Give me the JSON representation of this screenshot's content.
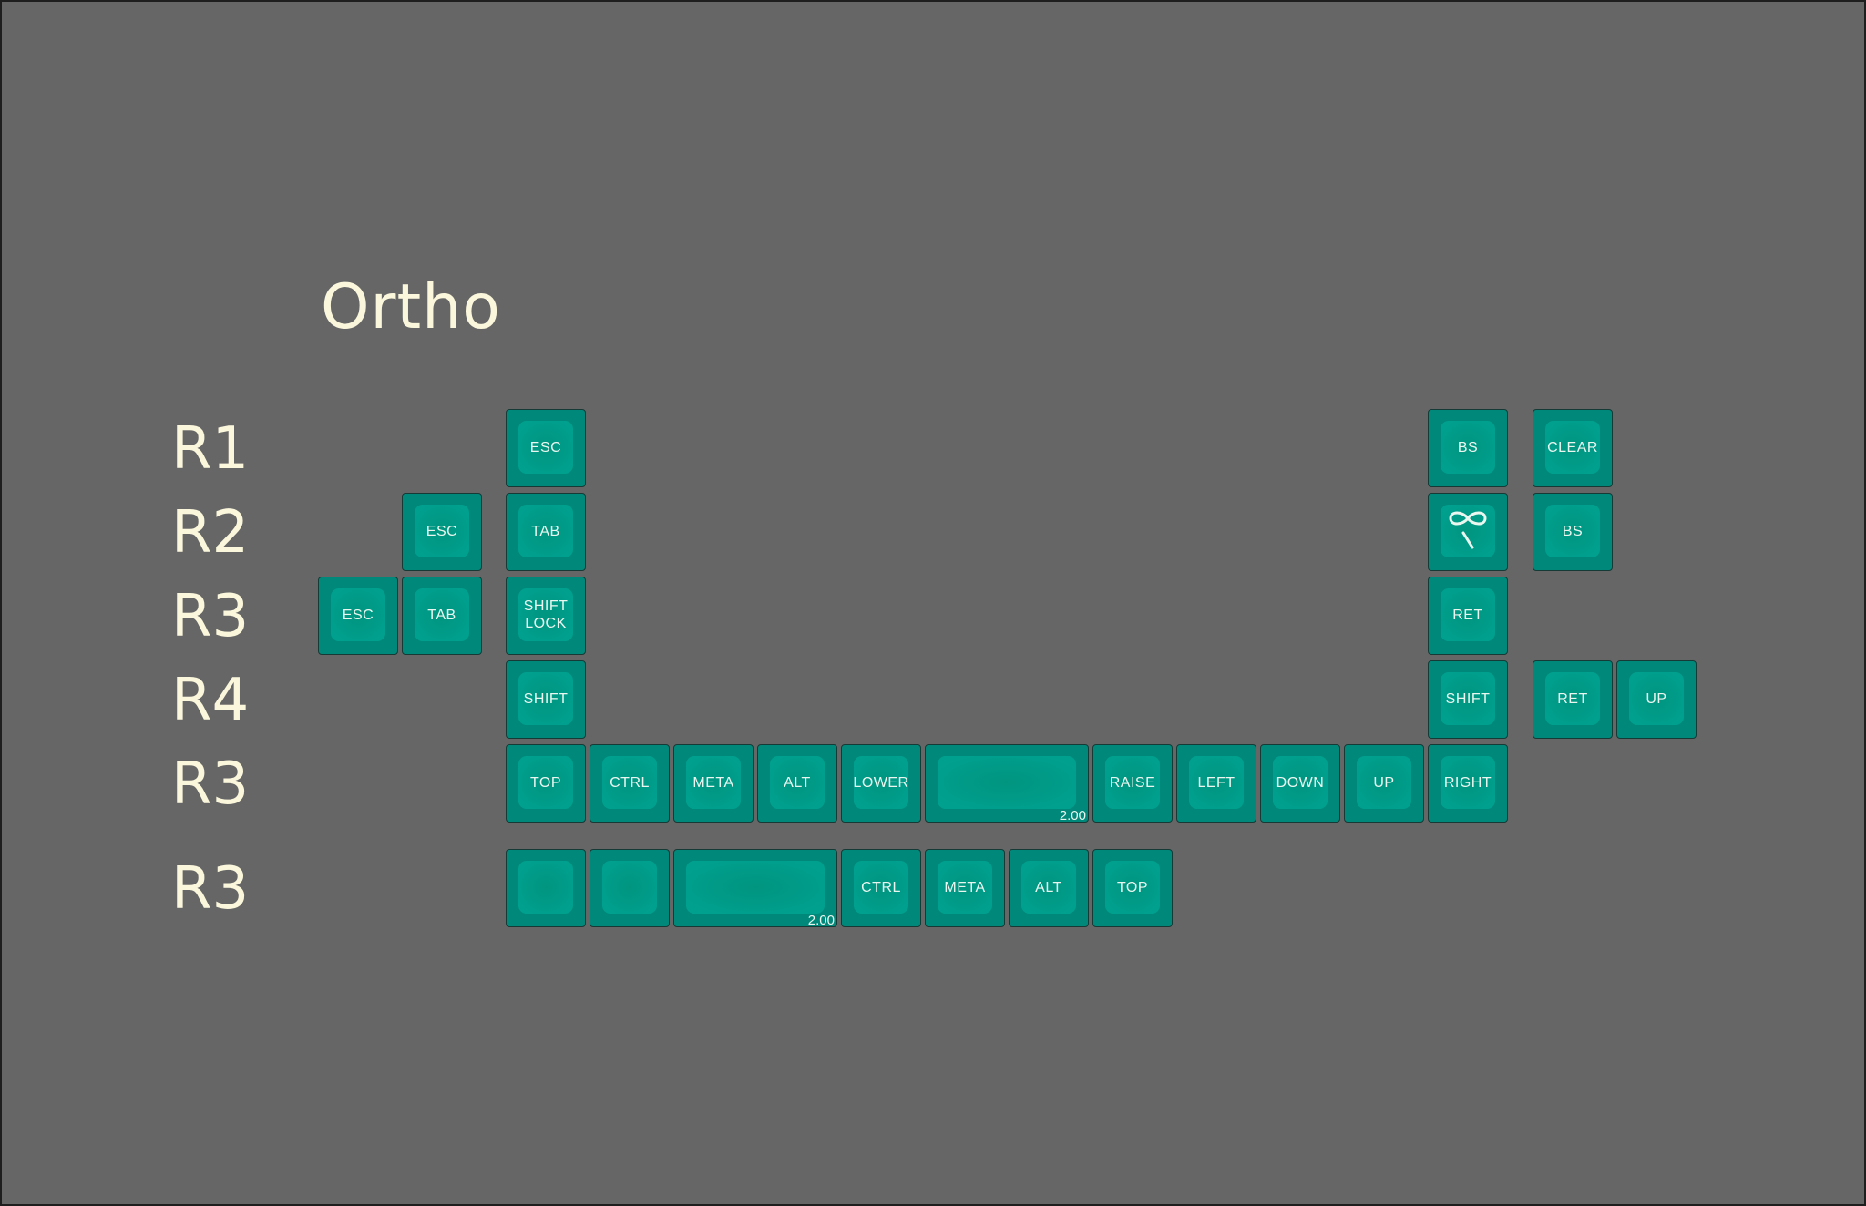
{
  "title": "Ortho",
  "row_labels": [
    "R1",
    "R2",
    "R3",
    "R4",
    "R3",
    "R3"
  ],
  "colors": {
    "background": "#666666",
    "key_outer": "#00897a",
    "key_top": "#00a08f",
    "legend": "#eaf7f0",
    "heading": "#fbf7dc"
  },
  "rows": [
    {
      "keys": [
        {
          "label": "ESC"
        },
        {
          "label": "BS"
        },
        {
          "label": "CLEAR"
        }
      ]
    },
    {
      "keys": [
        {
          "label": "ESC"
        },
        {
          "label": "TAB"
        },
        {
          "label": "",
          "icon": "infinity-backslash-icon"
        },
        {
          "label": "BS"
        }
      ]
    },
    {
      "keys": [
        {
          "label": "ESC"
        },
        {
          "label": "TAB"
        },
        {
          "label": "SHIFT\nLOCK"
        },
        {
          "label": "RET"
        }
      ]
    },
    {
      "keys": [
        {
          "label": "SHIFT"
        },
        {
          "label": "SHIFT"
        },
        {
          "label": "RET"
        },
        {
          "label": "UP"
        }
      ]
    },
    {
      "keys": [
        {
          "label": "TOP"
        },
        {
          "label": "CTRL"
        },
        {
          "label": "META"
        },
        {
          "label": "ALT"
        },
        {
          "label": "LOWER"
        },
        {
          "label": "",
          "size": "2.00"
        },
        {
          "label": "RAISE"
        },
        {
          "label": "LEFT"
        },
        {
          "label": "DOWN"
        },
        {
          "label": "UP"
        },
        {
          "label": "RIGHT"
        }
      ]
    },
    {
      "keys": [
        {
          "label": ""
        },
        {
          "label": ""
        },
        {
          "label": "",
          "size": "2.00"
        },
        {
          "label": "CTRL"
        },
        {
          "label": "META"
        },
        {
          "label": "ALT"
        },
        {
          "label": "TOP"
        }
      ]
    }
  ]
}
